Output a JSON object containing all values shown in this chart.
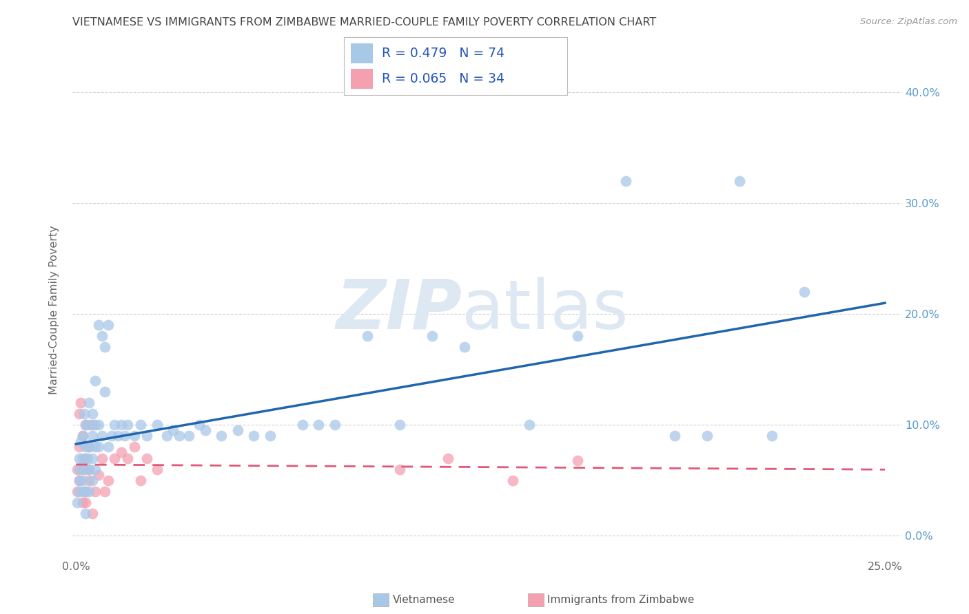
{
  "title": "VIETNAMESE VS IMMIGRANTS FROM ZIMBABWE MARRIED-COUPLE FAMILY POVERTY CORRELATION CHART",
  "source": "Source: ZipAtlas.com",
  "ylabel": "Married-Couple Family Poverty",
  "xlim": [
    -0.001,
    0.255
  ],
  "ylim": [
    -0.018,
    0.425
  ],
  "xticks": [
    0.0,
    0.05,
    0.1,
    0.15,
    0.2,
    0.25
  ],
  "xtick_labels_show": [
    "0.0%",
    "",
    "",
    "",
    "",
    "25.0%"
  ],
  "yticks": [
    0.0,
    0.1,
    0.2,
    0.3,
    0.4
  ],
  "ytick_labels": [
    "0.0%",
    "10.0%",
    "20.0%",
    "30.0%",
    "40.0%"
  ],
  "legend_labels": [
    "Vietnamese",
    "Immigrants from Zimbabwe"
  ],
  "legend_r1": "R = 0.479",
  "legend_n1": "N = 74",
  "legend_r2": "R = 0.065",
  "legend_n2": "N = 34",
  "blue_color": "#a8c8e8",
  "pink_color": "#f4a0b0",
  "blue_line_color": "#2166ac",
  "pink_line_color": "#e05878",
  "background_color": "#ffffff",
  "grid_color": "#cccccc",
  "title_color": "#444444",
  "axis_label_color": "#666666",
  "right_tick_color": "#5599cc",
  "watermark_zip_color": "#dde8f2",
  "watermark_atlas_color": "#dde8f2",
  "viet_x": [
    0.0005,
    0.001,
    0.001,
    0.001,
    0.001,
    0.0015,
    0.002,
    0.002,
    0.002,
    0.002,
    0.0025,
    0.003,
    0.003,
    0.003,
    0.003,
    0.003,
    0.0035,
    0.004,
    0.004,
    0.004,
    0.004,
    0.004,
    0.005,
    0.005,
    0.005,
    0.005,
    0.006,
    0.006,
    0.006,
    0.006,
    0.007,
    0.007,
    0.007,
    0.008,
    0.008,
    0.009,
    0.009,
    0.01,
    0.01,
    0.011,
    0.012,
    0.013,
    0.014,
    0.015,
    0.016,
    0.018,
    0.02,
    0.022,
    0.025,
    0.028,
    0.03,
    0.032,
    0.035,
    0.038,
    0.04,
    0.045,
    0.05,
    0.055,
    0.06,
    0.07,
    0.075,
    0.08,
    0.09,
    0.1,
    0.11,
    0.12,
    0.14,
    0.155,
    0.17,
    0.185,
    0.195,
    0.205,
    0.215,
    0.225
  ],
  "viet_y": [
    0.03,
    0.05,
    0.07,
    0.04,
    0.06,
    0.085,
    0.05,
    0.07,
    0.04,
    0.09,
    0.11,
    0.06,
    0.08,
    0.04,
    0.1,
    0.02,
    0.07,
    0.08,
    0.06,
    0.1,
    0.04,
    0.12,
    0.09,
    0.07,
    0.05,
    0.11,
    0.08,
    0.1,
    0.06,
    0.14,
    0.19,
    0.08,
    0.1,
    0.18,
    0.09,
    0.17,
    0.13,
    0.19,
    0.08,
    0.09,
    0.1,
    0.09,
    0.1,
    0.09,
    0.1,
    0.09,
    0.1,
    0.09,
    0.1,
    0.09,
    0.095,
    0.09,
    0.09,
    0.1,
    0.095,
    0.09,
    0.095,
    0.09,
    0.09,
    0.1,
    0.1,
    0.1,
    0.18,
    0.1,
    0.18,
    0.17,
    0.1,
    0.18,
    0.32,
    0.09,
    0.09,
    0.32,
    0.09,
    0.22
  ],
  "zimb_x": [
    0.0003,
    0.0005,
    0.001,
    0.001,
    0.001,
    0.0015,
    0.002,
    0.002,
    0.002,
    0.003,
    0.003,
    0.003,
    0.003,
    0.004,
    0.004,
    0.004,
    0.005,
    0.005,
    0.006,
    0.007,
    0.008,
    0.009,
    0.01,
    0.012,
    0.014,
    0.016,
    0.018,
    0.02,
    0.022,
    0.025,
    0.1,
    0.115,
    0.135,
    0.155
  ],
  "zimb_y": [
    0.04,
    0.06,
    0.05,
    0.08,
    0.11,
    0.12,
    0.06,
    0.09,
    0.03,
    0.07,
    0.04,
    0.1,
    0.03,
    0.05,
    0.08,
    0.06,
    0.02,
    0.1,
    0.04,
    0.055,
    0.07,
    0.04,
    0.05,
    0.07,
    0.075,
    0.07,
    0.08,
    0.05,
    0.07,
    0.06,
    0.06,
    0.07,
    0.05,
    0.068
  ]
}
